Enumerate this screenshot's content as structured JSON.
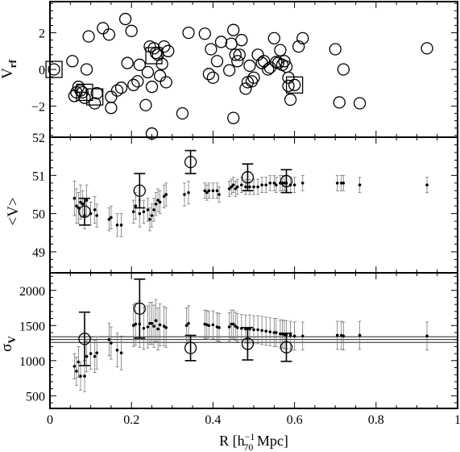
{
  "chart_data": [
    {
      "type": "scatter",
      "panel": "top",
      "ylabel_main": "V",
      "ylabel_sub": "rf",
      "ylim": [
        -3.7,
        3.7
      ],
      "yticks": [
        -2,
        0,
        2
      ],
      "ytick_labels": [
        "−2",
        "0",
        "2"
      ],
      "series": [
        {
          "marker": "open-circle",
          "points": [
            [
              0.01,
              0.0
            ],
            [
              0.055,
              0.45
            ],
            [
              0.06,
              -1.45
            ],
            [
              0.065,
              -1.25
            ],
            [
              0.07,
              -0.95
            ],
            [
              0.075,
              -1.15
            ],
            [
              0.08,
              -1.25
            ],
            [
              0.085,
              -1.55
            ],
            [
              0.09,
              0.0
            ],
            [
              0.095,
              1.8
            ],
            [
              0.11,
              -1.85
            ],
            [
              0.115,
              -1.3
            ],
            [
              0.13,
              2.25
            ],
            [
              0.145,
              1.9
            ],
            [
              0.15,
              -1.5
            ],
            [
              0.15,
              -2.1
            ],
            [
              0.165,
              -1.15
            ],
            [
              0.175,
              -1.0
            ],
            [
              0.185,
              2.75
            ],
            [
              0.19,
              0.35
            ],
            [
              0.2,
              2.1
            ],
            [
              0.205,
              -0.85
            ],
            [
              0.215,
              -0.65
            ],
            [
              0.22,
              0.25
            ],
            [
              0.235,
              -1.95
            ],
            [
              0.24,
              -0.15
            ],
            [
              0.245,
              1.25
            ],
            [
              0.25,
              -0.95
            ],
            [
              0.25,
              -3.5
            ],
            [
              0.255,
              1.15
            ],
            [
              0.26,
              0.9
            ],
            [
              0.265,
              0.8
            ],
            [
              0.27,
              -0.35
            ],
            [
              0.275,
              0.3
            ],
            [
              0.28,
              1.25
            ],
            [
              0.285,
              -0.7
            ],
            [
              0.29,
              1.0
            ],
            [
              0.325,
              -2.4
            ],
            [
              0.34,
              2.0
            ],
            [
              0.38,
              1.95
            ],
            [
              0.39,
              -0.25
            ],
            [
              0.395,
              1.1
            ],
            [
              0.4,
              -0.45
            ],
            [
              0.41,
              0.45
            ],
            [
              0.42,
              1.5
            ],
            [
              0.44,
              -0.05
            ],
            [
              0.445,
              1.4
            ],
            [
              0.45,
              2.15
            ],
            [
              0.45,
              -2.65
            ],
            [
              0.455,
              0.8
            ],
            [
              0.46,
              0.45
            ],
            [
              0.465,
              0.8
            ],
            [
              0.47,
              1.6
            ],
            [
              0.48,
              -1.05
            ],
            [
              0.485,
              -0.7
            ],
            [
              0.49,
              0.2
            ],
            [
              0.495,
              -0.65
            ],
            [
              0.5,
              -0.45
            ],
            [
              0.51,
              0.8
            ],
            [
              0.52,
              0.35
            ],
            [
              0.525,
              0.45
            ],
            [
              0.535,
              0.0
            ],
            [
              0.54,
              0.1
            ],
            [
              0.55,
              1.7
            ],
            [
              0.555,
              0.4
            ],
            [
              0.56,
              0.35
            ],
            [
              0.565,
              1.05
            ],
            [
              0.57,
              0.25
            ],
            [
              0.575,
              0.45
            ],
            [
              0.58,
              0.15
            ],
            [
              0.585,
              -0.45
            ],
            [
              0.585,
              -0.9
            ],
            [
              0.59,
              -1.65
            ],
            [
              0.6,
              -0.85
            ],
            [
              0.61,
              1.25
            ],
            [
              0.62,
              1.7
            ],
            [
              0.7,
              1.1
            ],
            [
              0.71,
              -1.8
            ],
            [
              0.72,
              0.0
            ],
            [
              0.76,
              -1.85
            ],
            [
              0.925,
              1.15
            ]
          ]
        },
        {
          "marker": "open-square",
          "points": [
            [
              0.01,
              0.0
            ],
            [
              0.085,
              -1.25
            ],
            [
              0.11,
              -1.5
            ],
            [
              0.255,
              0.75
            ],
            [
              0.6,
              -0.85
            ]
          ]
        }
      ]
    },
    {
      "type": "scatter",
      "panel": "middle",
      "ylabel": "<V>",
      "ylim": [
        48.45,
        52.0
      ],
      "yticks": [
        49,
        50,
        51,
        52
      ],
      "ytick_labels": [
        "49",
        "50",
        "51",
        "52"
      ],
      "series": [
        {
          "marker": "dot-with-errorbar",
          "points": [
            [
              0.06,
              50.4,
              0.45
            ],
            [
              0.065,
              50.2,
              0.45
            ],
            [
              0.07,
              50.15,
              0.4
            ],
            [
              0.075,
              50.3,
              0.45
            ],
            [
              0.08,
              50.25,
              0.35
            ],
            [
              0.085,
              49.95,
              0.35
            ],
            [
              0.09,
              50.35,
              0.4
            ],
            [
              0.1,
              50.0,
              0.3
            ],
            [
              0.11,
              50.1,
              0.35
            ],
            [
              0.115,
              49.95,
              0.3
            ],
            [
              0.145,
              49.85,
              0.3
            ],
            [
              0.15,
              49.9,
              0.3
            ],
            [
              0.165,
              49.7,
              0.3
            ],
            [
              0.175,
              49.7,
              0.3
            ],
            [
              0.205,
              50.05,
              0.3
            ],
            [
              0.21,
              50.2,
              0.35
            ],
            [
              0.22,
              50.0,
              0.35
            ],
            [
              0.23,
              50.05,
              0.3
            ],
            [
              0.24,
              50.1,
              0.3
            ],
            [
              0.245,
              49.85,
              0.3
            ],
            [
              0.25,
              49.95,
              0.3
            ],
            [
              0.255,
              50.1,
              0.3
            ],
            [
              0.26,
              50.25,
              0.3
            ],
            [
              0.265,
              50.35,
              0.3
            ],
            [
              0.27,
              50.3,
              0.3
            ],
            [
              0.28,
              50.45,
              0.3
            ],
            [
              0.285,
              50.5,
              0.3
            ],
            [
              0.33,
              50.5,
              0.3
            ],
            [
              0.34,
              50.55,
              0.3
            ],
            [
              0.38,
              50.6,
              0.2
            ],
            [
              0.385,
              50.55,
              0.2
            ],
            [
              0.39,
              50.6,
              0.2
            ],
            [
              0.4,
              50.6,
              0.2
            ],
            [
              0.41,
              50.6,
              0.2
            ],
            [
              0.415,
              50.5,
              0.2
            ],
            [
              0.44,
              50.65,
              0.2
            ],
            [
              0.445,
              50.7,
              0.2
            ],
            [
              0.45,
              50.75,
              0.2
            ],
            [
              0.455,
              50.65,
              0.2
            ],
            [
              0.46,
              50.7,
              0.2
            ],
            [
              0.47,
              50.75,
              0.2
            ],
            [
              0.48,
              50.7,
              0.2
            ],
            [
              0.49,
              50.7,
              0.2
            ],
            [
              0.5,
              50.7,
              0.2
            ],
            [
              0.51,
              50.7,
              0.2
            ],
            [
              0.52,
              50.75,
              0.2
            ],
            [
              0.53,
              50.75,
              0.2
            ],
            [
              0.54,
              50.8,
              0.2
            ],
            [
              0.55,
              50.8,
              0.2
            ],
            [
              0.555,
              50.75,
              0.2
            ],
            [
              0.565,
              50.8,
              0.2
            ],
            [
              0.57,
              50.8,
              0.2
            ],
            [
              0.575,
              50.8,
              0.2
            ],
            [
              0.58,
              50.8,
              0.2
            ],
            [
              0.59,
              50.75,
              0.2
            ],
            [
              0.6,
              50.75,
              0.2
            ],
            [
              0.62,
              50.8,
              0.2
            ],
            [
              0.705,
              50.8,
              0.2
            ],
            [
              0.715,
              50.8,
              0.2
            ],
            [
              0.72,
              50.8,
              0.2
            ],
            [
              0.76,
              50.75,
              0.2
            ],
            [
              0.925,
              50.75,
              0.2
            ]
          ]
        },
        {
          "marker": "open-circle-with-errorbar",
          "points": [
            [
              0.085,
              50.05,
              0.35
            ],
            [
              0.22,
              50.6,
              0.45
            ],
            [
              0.345,
              51.35,
              0.3
            ],
            [
              0.485,
              50.95,
              0.35
            ],
            [
              0.58,
              50.85,
              0.3
            ]
          ]
        }
      ]
    },
    {
      "type": "scatter",
      "panel": "bottom",
      "ylabel_main": "σ",
      "ylabel_sub": "V",
      "xlabel_main": "R [h",
      "xlabel_sup": "−1",
      "xlabel_sub": "70",
      "xlabel_tail": " Mpc]",
      "xlim": [
        0,
        1
      ],
      "xticks": [
        0,
        0.2,
        0.4,
        0.6,
        0.8,
        1
      ],
      "xtick_labels": [
        "0",
        "0.2",
        "0.4",
        "0.6",
        "0.8",
        "1"
      ],
      "ylim": [
        320,
        2250
      ],
      "yticks": [
        500,
        1000,
        1500,
        2000
      ],
      "ytick_labels": [
        "500",
        "1000",
        "1500",
        "2000"
      ],
      "hlines": [
        1260,
        1300,
        1340
      ],
      "series": [
        {
          "marker": "dot-with-errorbar",
          "points": [
            [
              0.06,
              920,
              180
            ],
            [
              0.065,
              850,
              200
            ],
            [
              0.07,
              980,
              220
            ],
            [
              0.075,
              780,
              200
            ],
            [
              0.085,
              780,
              220
            ],
            [
              0.09,
              1060,
              220
            ],
            [
              0.1,
              1100,
              220
            ],
            [
              0.11,
              1060,
              230
            ],
            [
              0.115,
              1110,
              230
            ],
            [
              0.145,
              1300,
              230
            ],
            [
              0.15,
              1250,
              230
            ],
            [
              0.165,
              1150,
              240
            ],
            [
              0.175,
              1110,
              240
            ],
            [
              0.205,
              1500,
              300
            ],
            [
              0.21,
              1520,
              300
            ],
            [
              0.22,
              1520,
              330
            ],
            [
              0.23,
              1460,
              300
            ],
            [
              0.24,
              1480,
              300
            ],
            [
              0.245,
              1530,
              300
            ],
            [
              0.25,
              1530,
              300
            ],
            [
              0.255,
              1490,
              300
            ],
            [
              0.26,
              1570,
              300
            ],
            [
              0.265,
              1450,
              300
            ],
            [
              0.27,
              1510,
              300
            ],
            [
              0.28,
              1490,
              280
            ],
            [
              0.285,
              1470,
              280
            ],
            [
              0.335,
              1500,
              250
            ],
            [
              0.34,
              1530,
              250
            ],
            [
              0.38,
              1520,
              200
            ],
            [
              0.385,
              1510,
              200
            ],
            [
              0.39,
              1500,
              200
            ],
            [
              0.4,
              1510,
              200
            ],
            [
              0.41,
              1480,
              200
            ],
            [
              0.415,
              1470,
              200
            ],
            [
              0.44,
              1480,
              200
            ],
            [
              0.445,
              1520,
              200
            ],
            [
              0.45,
              1520,
              200
            ],
            [
              0.455,
              1490,
              200
            ],
            [
              0.46,
              1470,
              200
            ],
            [
              0.47,
              1460,
              200
            ],
            [
              0.48,
              1450,
              200
            ],
            [
              0.49,
              1450,
              200
            ],
            [
              0.5,
              1440,
              200
            ],
            [
              0.51,
              1440,
              200
            ],
            [
              0.52,
              1430,
              200
            ],
            [
              0.53,
              1420,
              200
            ],
            [
              0.54,
              1410,
              200
            ],
            [
              0.55,
              1400,
              200
            ],
            [
              0.555,
              1400,
              200
            ],
            [
              0.565,
              1380,
              200
            ],
            [
              0.57,
              1380,
              200
            ],
            [
              0.575,
              1370,
              200
            ],
            [
              0.58,
              1370,
              200
            ],
            [
              0.59,
              1360,
              200
            ],
            [
              0.6,
              1350,
              200
            ],
            [
              0.62,
              1350,
              200
            ],
            [
              0.705,
              1360,
              200
            ],
            [
              0.715,
              1360,
              200
            ],
            [
              0.72,
              1350,
              200
            ],
            [
              0.76,
              1360,
              200
            ],
            [
              0.925,
              1350,
              200
            ]
          ]
        },
        {
          "marker": "open-circle-with-errorbar",
          "points": [
            [
              0.085,
              1310,
              380
            ],
            [
              0.22,
              1740,
              420
            ],
            [
              0.345,
              1180,
              180
            ],
            [
              0.485,
              1240,
              230
            ],
            [
              0.58,
              1190,
              200
            ]
          ]
        }
      ]
    }
  ]
}
